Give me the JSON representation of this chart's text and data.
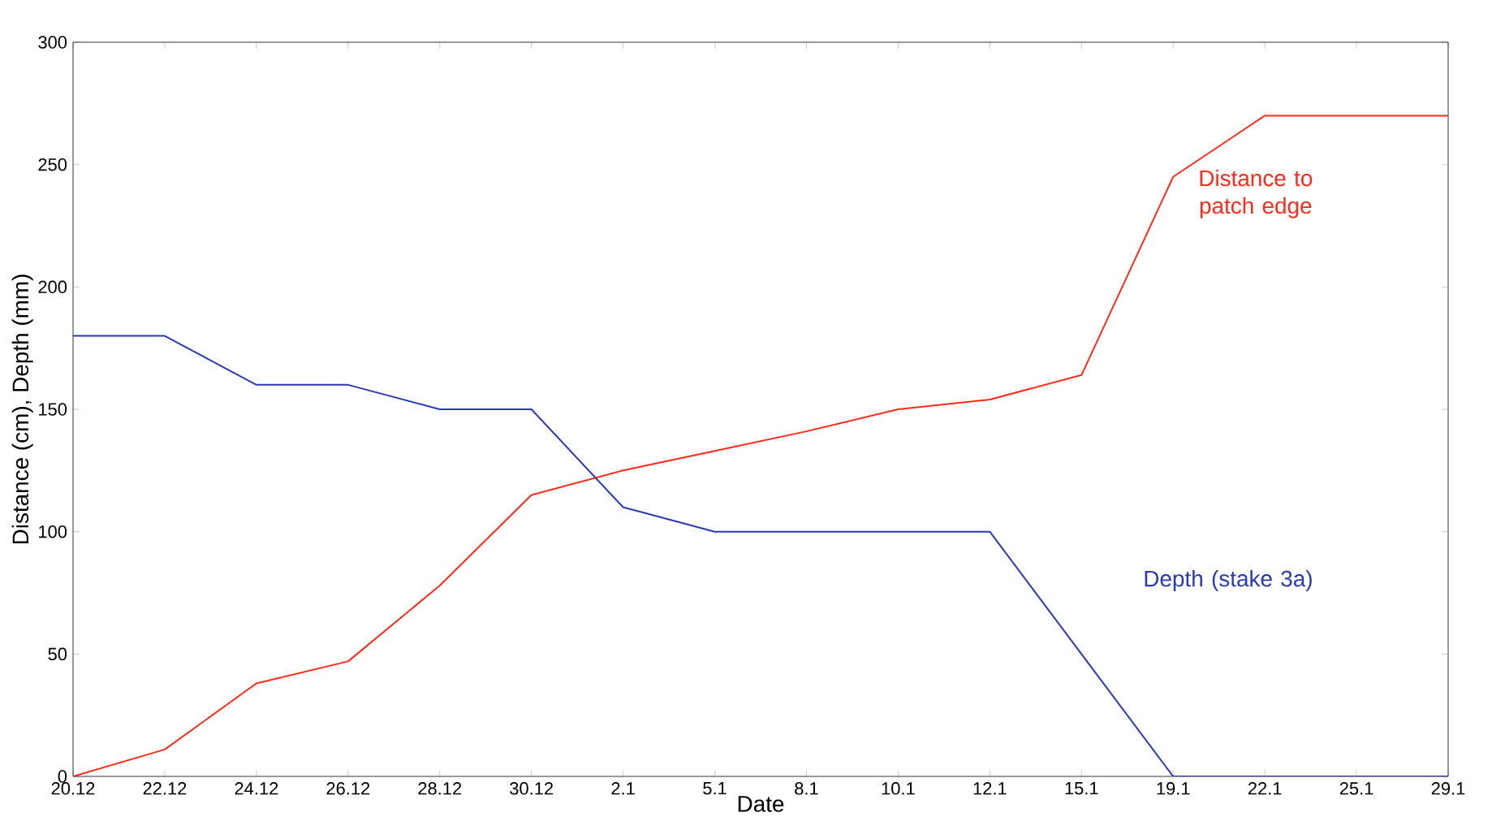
{
  "chart_data": {
    "type": "line",
    "xlabel": "Date",
    "ylabel": "Distance (cm), Depth (mm)",
    "categories": [
      "20.12",
      "22.12",
      "24.12",
      "26.12",
      "28.12",
      "30.12",
      "2.1",
      "5.1",
      "8.1",
      "10.1",
      "12.1",
      "15.1",
      "19.1",
      "22.1",
      "25.1",
      "29.1"
    ],
    "series": [
      {
        "name": "Distance to patch edge",
        "color": "#ff2a1a",
        "values": [
          0,
          11,
          38,
          47,
          78,
          115,
          125,
          133,
          141,
          150,
          154,
          164,
          245,
          270,
          270,
          270
        ]
      },
      {
        "name": "Depth (stake 3a)",
        "color": "#2a3ab0",
        "values": [
          180,
          180,
          160,
          160,
          150,
          150,
          110,
          100,
          100,
          100,
          100,
          50,
          0,
          0,
          0,
          0
        ]
      }
    ],
    "ylim": [
      0,
      300
    ],
    "yticks": [
      0,
      50,
      100,
      150,
      200,
      250,
      300
    ],
    "grid": false,
    "legend": false,
    "marker": "none",
    "line_style": "solid"
  }
}
